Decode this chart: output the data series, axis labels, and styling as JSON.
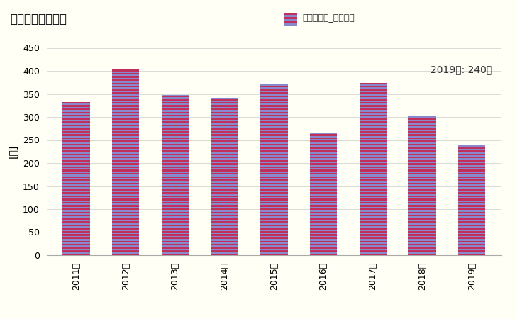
{
  "title": "建築物総数の推移",
  "ylabel": "[棟]",
  "legend_label": "全建築物計_建築物数",
  "annotation": "2019年: 240棟",
  "years": [
    "2011年",
    "2012年",
    "2013年",
    "2014年",
    "2015年",
    "2016年",
    "2017年",
    "2018年",
    "2019年"
  ],
  "values": [
    332,
    403,
    347,
    342,
    373,
    266,
    374,
    302,
    240
  ],
  "ylim": [
    0,
    450
  ],
  "yticks": [
    0,
    50,
    100,
    150,
    200,
    250,
    300,
    350,
    400,
    450
  ],
  "stripe_color1": "#C0305A",
  "stripe_color2": "#8888CC",
  "background_color": "#FFFFF5",
  "bar_width": 0.55,
  "title_fontsize": 12,
  "legend_fontsize": 9,
  "tick_fontsize": 9,
  "ylabel_fontsize": 10,
  "annotation_fontsize": 10
}
